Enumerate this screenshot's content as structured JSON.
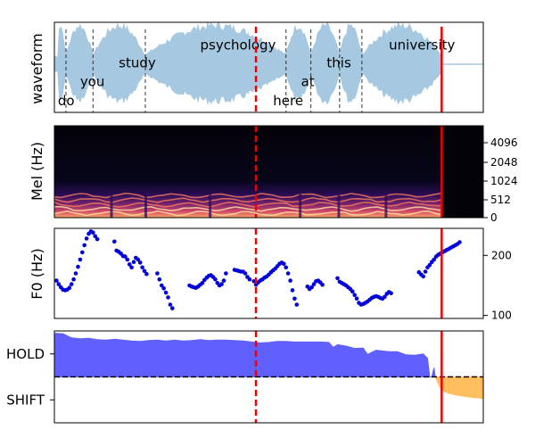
{
  "chart_data": [
    {
      "type": "area",
      "panel": "waveform",
      "ylabel": "waveform",
      "x_range": [
        0,
        1
      ],
      "words": [
        {
          "text": "do",
          "x": 0.008,
          "level": 0.08
        },
        {
          "text": "you",
          "x": 0.06,
          "level": 0.29
        },
        {
          "text": "study",
          "x": 0.15,
          "level": 0.5
        },
        {
          "text": "psychology",
          "x": 0.34,
          "level": 0.7
        },
        {
          "text": "here",
          "x": 0.51,
          "level": 0.08
        },
        {
          "text": "at",
          "x": 0.575,
          "level": 0.29
        },
        {
          "text": "this",
          "x": 0.635,
          "level": 0.5
        },
        {
          "text": "university",
          "x": 0.78,
          "level": 0.7
        }
      ],
      "word_boundaries": [
        0.027,
        0.09,
        0.212,
        0.54,
        0.598,
        0.665,
        0.717
      ],
      "red_dashed_line": 0.47,
      "red_solid_line": 0.903,
      "color": "#a6c8e0"
    },
    {
      "type": "heatmap",
      "panel": "mel",
      "ylabel": "Mel (Hz)",
      "yticks": [
        "0",
        "512",
        "1024",
        "2048",
        "4096"
      ],
      "x_range": [
        0,
        1
      ],
      "red_dashed_line": 0.47,
      "red_solid_line": 0.903
    },
    {
      "type": "scatter",
      "panel": "f0",
      "ylabel": "F0 (Hz)",
      "yticks": [
        100,
        200
      ],
      "ylim": [
        95,
        245
      ],
      "x_range": [
        0,
        1
      ],
      "color": "#0000dd",
      "red_dashed_line": 0.47,
      "red_solid_line": 0.903,
      "segments": [
        [
          [
            0.005,
            158
          ],
          [
            0.01,
            152
          ],
          [
            0.015,
            147
          ],
          [
            0.02,
            143
          ],
          [
            0.025,
            142
          ],
          [
            0.03,
            143
          ],
          [
            0.035,
            146
          ],
          [
            0.04,
            152
          ],
          [
            0.045,
            160
          ],
          [
            0.05,
            170
          ],
          [
            0.055,
            181
          ],
          [
            0.06,
            193
          ],
          [
            0.065,
            205
          ],
          [
            0.07,
            217
          ],
          [
            0.075,
            228
          ],
          [
            0.08,
            236
          ],
          [
            0.085,
            240
          ],
          [
            0.09,
            238
          ],
          [
            0.095,
            232
          ],
          [
            0.1,
            227
          ]
        ],
        [
          [
            0.14,
            223
          ],
          [
            0.145,
            208
          ],
          [
            0.15,
            206
          ],
          [
            0.155,
            203
          ],
          [
            0.16,
            199
          ],
          [
            0.165,
            198
          ],
          [
            0.17,
            193
          ],
          [
            0.175,
            185
          ],
          [
            0.18,
            180
          ],
          [
            0.185,
            189
          ],
          [
            0.19,
            196
          ],
          [
            0.195,
            193
          ],
          [
            0.2,
            188
          ],
          [
            0.205,
            180
          ],
          [
            0.21,
            174
          ],
          [
            0.215,
            169
          ]
        ],
        [
          [
            0.24,
            170
          ],
          [
            0.245,
            160
          ],
          [
            0.25,
            150
          ],
          [
            0.255,
            145
          ],
          [
            0.26,
            138
          ],
          [
            0.265,
            130
          ],
          [
            0.27,
            118
          ],
          [
            0.275,
            112
          ]
        ],
        [
          [
            0.315,
            150
          ],
          [
            0.32,
            148
          ],
          [
            0.325,
            147
          ],
          [
            0.33,
            146
          ],
          [
            0.335,
            148
          ],
          [
            0.34,
            151
          ],
          [
            0.345,
            154
          ],
          [
            0.35,
            159
          ],
          [
            0.355,
            163
          ],
          [
            0.36,
            166
          ],
          [
            0.365,
            167
          ],
          [
            0.37,
            164
          ],
          [
            0.375,
            160
          ],
          [
            0.38,
            154
          ],
          [
            0.385,
            150
          ],
          [
            0.39,
            152
          ],
          [
            0.395,
            158
          ],
          [
            0.4,
            170
          ]
        ],
        [
          [
            0.42,
            176
          ],
          [
            0.425,
            175
          ],
          [
            0.43,
            174
          ],
          [
            0.435,
            173
          ],
          [
            0.44,
            173
          ],
          [
            0.445,
            170
          ],
          [
            0.45,
            164
          ],
          [
            0.455,
            160
          ]
        ],
        [
          [
            0.465,
            157
          ],
          [
            0.47,
            151
          ],
          [
            0.475,
            155
          ],
          [
            0.48,
            158
          ],
          [
            0.485,
            160
          ],
          [
            0.49,
            163
          ],
          [
            0.495,
            165
          ],
          [
            0.5,
            168
          ],
          [
            0.505,
            172
          ],
          [
            0.51,
            175
          ],
          [
            0.515,
            178
          ],
          [
            0.52,
            182
          ],
          [
            0.525,
            186
          ],
          [
            0.53,
            188
          ],
          [
            0.535,
            186
          ],
          [
            0.54,
            180
          ],
          [
            0.545,
            170
          ],
          [
            0.55,
            158
          ],
          [
            0.555,
            142
          ],
          [
            0.56,
            128
          ],
          [
            0.565,
            118
          ]
        ],
        [
          [
            0.59,
            148
          ],
          [
            0.595,
            144
          ],
          [
            0.6,
            147
          ],
          [
            0.605,
            152
          ],
          [
            0.61,
            157
          ],
          [
            0.615,
            158
          ],
          [
            0.62,
            155
          ],
          [
            0.625,
            151
          ]
        ],
        [
          [
            0.66,
            162
          ],
          [
            0.665,
            156
          ],
          [
            0.67,
            154
          ],
          [
            0.675,
            152
          ],
          [
            0.68,
            150
          ],
          [
            0.685,
            147
          ],
          [
            0.69,
            144
          ],
          [
            0.695,
            140
          ],
          [
            0.7,
            134
          ],
          [
            0.705,
            128
          ],
          [
            0.71,
            121
          ],
          [
            0.715,
            118
          ],
          [
            0.72,
            119
          ],
          [
            0.725,
            121
          ],
          [
            0.73,
            123
          ],
          [
            0.735,
            126
          ],
          [
            0.74,
            129
          ],
          [
            0.745,
            131
          ],
          [
            0.75,
            132
          ],
          [
            0.755,
            131
          ],
          [
            0.76,
            129
          ],
          [
            0.765,
            128
          ],
          [
            0.77,
            131
          ],
          [
            0.775,
            136
          ],
          [
            0.78,
            139
          ],
          [
            0.785,
            137
          ]
        ],
        [
          [
            0.85,
            172
          ],
          [
            0.855,
            168
          ],
          [
            0.86,
            165
          ],
          [
            0.865,
            173
          ],
          [
            0.87,
            180
          ],
          [
            0.875,
            184
          ],
          [
            0.88,
            189
          ],
          [
            0.885,
            193
          ],
          [
            0.89,
            198
          ],
          [
            0.895,
            201
          ],
          [
            0.9,
            203
          ],
          [
            0.905,
            205
          ],
          [
            0.91,
            207
          ],
          [
            0.915,
            209
          ],
          [
            0.92,
            211
          ],
          [
            0.925,
            213
          ],
          [
            0.93,
            215
          ],
          [
            0.935,
            217
          ],
          [
            0.94,
            219
          ],
          [
            0.945,
            222
          ]
        ]
      ]
    },
    {
      "type": "area",
      "panel": "turn",
      "yticks": [
        "HOLD",
        "SHIFT"
      ],
      "ylim": [
        -1,
        1
      ],
      "x_range": [
        0,
        1
      ],
      "red_dashed_line": 0.47,
      "red_solid_line": 0.903,
      "hold_color": "#6060ff",
      "shift_color": "#ffbf5f",
      "hold_series": [
        [
          0.0,
          0.95
        ],
        [
          0.02,
          0.94
        ],
        [
          0.04,
          0.85
        ],
        [
          0.06,
          0.83
        ],
        [
          0.08,
          0.84
        ],
        [
          0.1,
          0.81
        ],
        [
          0.12,
          0.8
        ],
        [
          0.14,
          0.82
        ],
        [
          0.16,
          0.8
        ],
        [
          0.18,
          0.78
        ],
        [
          0.2,
          0.77
        ],
        [
          0.22,
          0.79
        ],
        [
          0.24,
          0.8
        ],
        [
          0.26,
          0.78
        ],
        [
          0.28,
          0.8
        ],
        [
          0.3,
          0.78
        ],
        [
          0.32,
          0.79
        ],
        [
          0.34,
          0.81
        ],
        [
          0.36,
          0.79
        ],
        [
          0.38,
          0.8
        ],
        [
          0.4,
          0.8
        ],
        [
          0.42,
          0.79
        ],
        [
          0.44,
          0.78
        ],
        [
          0.46,
          0.76
        ],
        [
          0.48,
          0.74
        ],
        [
          0.5,
          0.75
        ],
        [
          0.52,
          0.77
        ],
        [
          0.54,
          0.77
        ],
        [
          0.56,
          0.76
        ],
        [
          0.58,
          0.76
        ],
        [
          0.6,
          0.76
        ],
        [
          0.62,
          0.76
        ],
        [
          0.64,
          0.75
        ],
        [
          0.65,
          0.64
        ],
        [
          0.66,
          0.7
        ],
        [
          0.68,
          0.67
        ],
        [
          0.7,
          0.62
        ],
        [
          0.72,
          0.63
        ],
        [
          0.73,
          0.49
        ],
        [
          0.75,
          0.58
        ],
        [
          0.78,
          0.55
        ],
        [
          0.8,
          0.55
        ],
        [
          0.82,
          0.48
        ],
        [
          0.84,
          0.47
        ],
        [
          0.86,
          0.5
        ],
        [
          0.87,
          0.4
        ],
        [
          0.875,
          0.0
        ],
        [
          0.88,
          0.0
        ],
        [
          0.885,
          0.2
        ],
        [
          0.888,
          0.0
        ]
      ],
      "shift_series": [
        [
          0.888,
          0.0
        ],
        [
          0.9,
          -0.25
        ],
        [
          0.91,
          -0.32
        ],
        [
          0.92,
          -0.36
        ],
        [
          0.94,
          -0.4
        ],
        [
          0.96,
          -0.43
        ],
        [
          0.98,
          -0.45
        ],
        [
          1.0,
          -0.47
        ]
      ]
    }
  ]
}
